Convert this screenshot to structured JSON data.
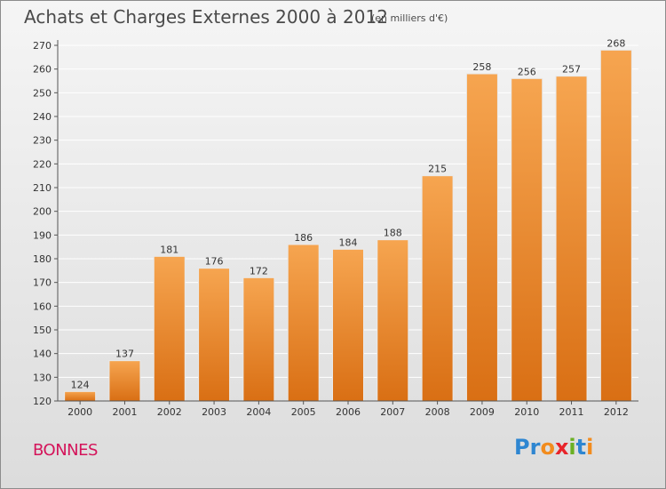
{
  "header": {
    "title": "Achats et Charges Externes 2000 à 2012",
    "subtitle": "(en milliers d'€)"
  },
  "footer": {
    "commune": "BONNES",
    "logo_letters": [
      {
        "char": "P",
        "color": "#2e86d1"
      },
      {
        "char": "r",
        "color": "#2e86d1"
      },
      {
        "char": "o",
        "color": "#f28c1e"
      },
      {
        "char": "x",
        "color": "#e8242a"
      },
      {
        "char": "i",
        "color": "#6ab023"
      },
      {
        "char": "t",
        "color": "#2e86d1"
      },
      {
        "char": "i",
        "color": "#f28c1e"
      }
    ]
  },
  "colors": {
    "bar_top": "#f6a550",
    "bar_bottom": "#d96f14",
    "grid": "#ffffff",
    "axis": "#555555"
  },
  "chart_data": {
    "type": "bar",
    "categories": [
      "2000",
      "2001",
      "2002",
      "2003",
      "2004",
      "2005",
      "2006",
      "2007",
      "2008",
      "2009",
      "2010",
      "2011",
      "2012"
    ],
    "values": [
      124,
      137,
      181,
      176,
      172,
      186,
      184,
      188,
      215,
      258,
      256,
      257,
      268
    ],
    "data_labels": [
      "124",
      "137",
      "181",
      "176",
      "172",
      "186",
      "184",
      "188",
      "215",
      "258",
      "256",
      "257",
      "268"
    ],
    "ylim": [
      120,
      270
    ],
    "yticks": [
      120,
      130,
      140,
      150,
      160,
      170,
      180,
      190,
      200,
      210,
      220,
      230,
      240,
      250,
      260,
      270
    ],
    "ytick_labels": [
      "120",
      "130",
      "140",
      "150",
      "160",
      "170",
      "180",
      "190",
      "200",
      "210",
      "220",
      "230",
      "240",
      "250",
      "260",
      "270"
    ],
    "grid": true,
    "xlabel": "",
    "ylabel": ""
  }
}
